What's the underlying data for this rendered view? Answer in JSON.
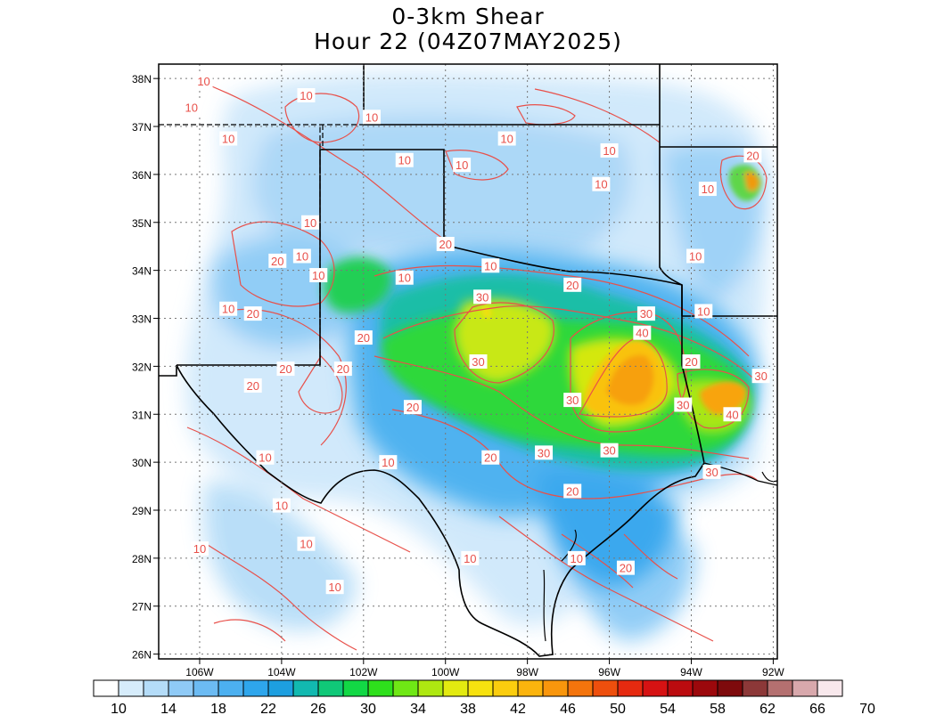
{
  "title": {
    "line1": "0-3km Shear",
    "line2": "Hour 22 (04Z07MAY2025)"
  },
  "axes": {
    "lat_labels": [
      "38N",
      "37N",
      "36N",
      "35N",
      "34N",
      "33N",
      "32N",
      "31N",
      "30N",
      "29N",
      "28N",
      "27N",
      "26N"
    ],
    "lat_values": [
      38,
      37,
      36,
      35,
      34,
      33,
      32,
      31,
      30,
      29,
      28,
      27,
      26
    ],
    "lon_labels": [
      "106W",
      "104W",
      "102W",
      "100W",
      "98W",
      "96W",
      "94W",
      "92W"
    ],
    "lon_values": [
      -106,
      -104,
      -102,
      -100,
      -98,
      -96,
      -94,
      -92
    ],
    "lat_range": [
      25.9,
      38.3
    ],
    "lon_range": [
      -107.0,
      -91.9
    ]
  },
  "colorbar": {
    "labels": [
      "10",
      "14",
      "18",
      "22",
      "26",
      "30",
      "34",
      "38",
      "42",
      "46",
      "50",
      "54",
      "58",
      "62",
      "66",
      "70"
    ],
    "colors": [
      "#ffffff",
      "#d6ecfb",
      "#b4dcf8",
      "#8fcaf6",
      "#6cbbf3",
      "#4cb0f0",
      "#2ea6ec",
      "#1d9fe0",
      "#12b9b0",
      "#10c878",
      "#12d845",
      "#2ee01c",
      "#6fe815",
      "#aee811",
      "#e3ea10",
      "#f7e20f",
      "#fbcd0e",
      "#fbb40d",
      "#f9960c",
      "#f4740c",
      "#ee4f0d",
      "#e62a10",
      "#d61213",
      "#bb0b0f",
      "#9c080c",
      "#7e0a0c",
      "#8c3838",
      "#b47070",
      "#d8a8ac",
      "#f8e8ec"
    ]
  },
  "contours": {
    "labels": [
      {
        "text": "10",
        "lat": 37.95,
        "lon": -105.9
      },
      {
        "text": "10",
        "lat": 37.65,
        "lon": -103.4
      },
      {
        "text": "10",
        "lat": 37.4,
        "lon": -106.2
      },
      {
        "text": "10",
        "lat": 37.2,
        "lon": -101.8
      },
      {
        "text": "10",
        "lat": 36.75,
        "lon": -98.5
      },
      {
        "text": "10",
        "lat": 36.5,
        "lon": -96.0
      },
      {
        "text": "10",
        "lat": 36.3,
        "lon": -101.0
      },
      {
        "text": "10",
        "lat": 36.2,
        "lon": -99.6
      },
      {
        "text": "10",
        "lat": 36.75,
        "lon": -105.3
      },
      {
        "text": "10",
        "lat": 35.8,
        "lon": -96.2
      },
      {
        "text": "10",
        "lat": 35.0,
        "lon": -103.3
      },
      {
        "text": "10",
        "lat": 34.3,
        "lon": -103.5
      },
      {
        "text": "10",
        "lat": 33.9,
        "lon": -103.1
      },
      {
        "text": "10",
        "lat": 33.85,
        "lon": -101.0
      },
      {
        "text": "10",
        "lat": 34.1,
        "lon": -98.9
      },
      {
        "text": "10",
        "lat": 34.3,
        "lon": -93.9
      },
      {
        "text": "10",
        "lat": 33.15,
        "lon": -93.7
      },
      {
        "text": "10",
        "lat": 35.7,
        "lon": -93.6
      },
      {
        "text": "10",
        "lat": 33.2,
        "lon": -105.3
      },
      {
        "text": "10",
        "lat": 30.1,
        "lon": -104.4
      },
      {
        "text": "10",
        "lat": 30.0,
        "lon": -101.4
      },
      {
        "text": "10",
        "lat": 29.1,
        "lon": -104.0
      },
      {
        "text": "10",
        "lat": 28.3,
        "lon": -103.4
      },
      {
        "text": "10",
        "lat": 28.2,
        "lon": -106.0
      },
      {
        "text": "10",
        "lat": 27.4,
        "lon": -102.7
      },
      {
        "text": "10",
        "lat": 28.0,
        "lon": -99.4
      },
      {
        "text": "10",
        "lat": 28.0,
        "lon": -96.8
      },
      {
        "text": "20",
        "lat": 34.55,
        "lon": -100.0
      },
      {
        "text": "20",
        "lat": 34.2,
        "lon": -104.1
      },
      {
        "text": "20",
        "lat": 33.1,
        "lon": -104.7
      },
      {
        "text": "20",
        "lat": 32.6,
        "lon": -102.0
      },
      {
        "text": "20",
        "lat": 31.95,
        "lon": -102.5
      },
      {
        "text": "20",
        "lat": 31.95,
        "lon": -103.9
      },
      {
        "text": "20",
        "lat": 31.6,
        "lon": -104.7
      },
      {
        "text": "20",
        "lat": 30.1,
        "lon": -98.9
      },
      {
        "text": "20",
        "lat": 31.15,
        "lon": -100.8
      },
      {
        "text": "20",
        "lat": 29.4,
        "lon": -96.9
      },
      {
        "text": "20",
        "lat": 33.7,
        "lon": -96.9
      },
      {
        "text": "20",
        "lat": 32.1,
        "lon": -94.0
      },
      {
        "text": "20",
        "lat": 36.4,
        "lon": -92.5
      },
      {
        "text": "20",
        "lat": 27.8,
        "lon": -95.6
      },
      {
        "text": "30",
        "lat": 33.45,
        "lon": -99.1
      },
      {
        "text": "30",
        "lat": 32.1,
        "lon": -99.2
      },
      {
        "text": "30",
        "lat": 31.3,
        "lon": -96.9
      },
      {
        "text": "30",
        "lat": 30.2,
        "lon": -97.6
      },
      {
        "text": "30",
        "lat": 30.25,
        "lon": -96.0
      },
      {
        "text": "30",
        "lat": 33.1,
        "lon": -95.1
      },
      {
        "text": "30",
        "lat": 29.8,
        "lon": -93.5
      },
      {
        "text": "30",
        "lat": 31.8,
        "lon": -92.3
      },
      {
        "text": "30",
        "lat": 31.2,
        "lon": -94.2
      },
      {
        "text": "40",
        "lat": 32.7,
        "lon": -95.2
      },
      {
        "text": "40",
        "lat": 31.0,
        "lon": -93.0
      }
    ]
  }
}
